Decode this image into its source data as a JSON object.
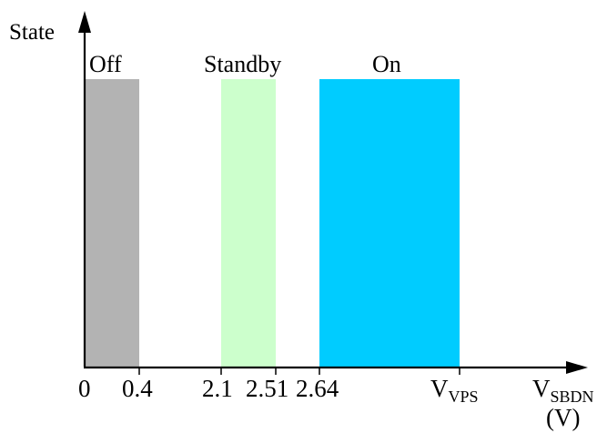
{
  "axis": {
    "y_label": "State",
    "x_label_main": "V",
    "x_label_sub": "SBDN",
    "x_unit": "(V)"
  },
  "states": [
    {
      "label": "Off",
      "color": "#b3b3b3"
    },
    {
      "label": "Standby",
      "color": "#ccffcc"
    },
    {
      "label": "On",
      "color": "#00ccff"
    }
  ],
  "ticks": {
    "t0": "0",
    "t1": "0.4",
    "t2": "2.1",
    "t3": "2.51",
    "t4": "2.64",
    "t5_main": "V",
    "t5_sub": "VPS"
  }
}
